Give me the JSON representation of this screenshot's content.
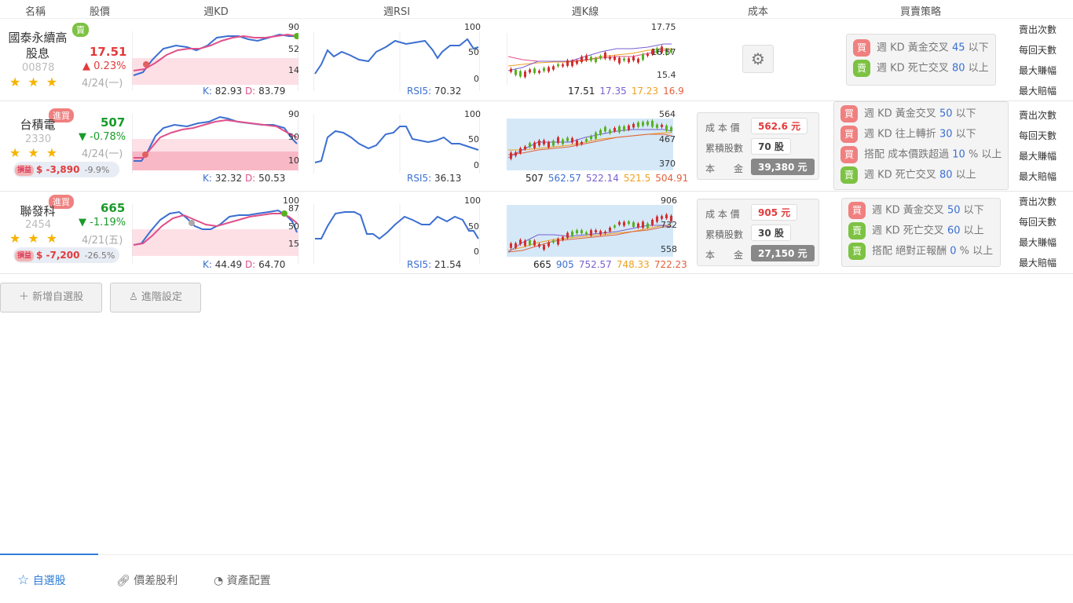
{
  "header": {
    "name": "名稱",
    "price": "股價",
    "kd": "週KD",
    "rsi": "週RSI",
    "kline": "週K線",
    "cost": "成本",
    "strategy": "買賣策略"
  },
  "stat_labels": [
    "賣出次數",
    "每回天數",
    "最大賺幅",
    "最大賠幅"
  ],
  "stocks": [
    {
      "name_line1": "國泰永續高",
      "name_line2": "股息",
      "code": "00878",
      "price": "17.51",
      "change": "0.23%",
      "change_dir": "up",
      "date": "4/24(一)",
      "tag": "賣",
      "tag_type": "sell",
      "kd_ticks": [
        "90",
        "52",
        "14"
      ],
      "kd_k": "82.93",
      "kd_d": "83.79",
      "k_label": "K:",
      "d_label": "D:",
      "rsi_ticks": [
        "100",
        "50",
        "0"
      ],
      "rsi_label": "RSI5:",
      "rsi_value": "70.32",
      "k_ticks": [
        "17.75",
        "16.57",
        "15.4"
      ],
      "k_vals": [
        "17.51",
        "17.35",
        "17.23",
        "16.9"
      ]
    },
    {
      "name_line1": "台積電",
      "code": "2330",
      "price": "507",
      "change": "-0.78%",
      "change_dir": "down",
      "date": "4/24(一)",
      "tag": "進買",
      "tag_type": "buy",
      "pl_icon": "損益",
      "pl_value": "$ -3,890",
      "pl_pct": "-9.9%",
      "kd_ticks": [
        "90",
        "50",
        "10"
      ],
      "kd_k": "32.32",
      "kd_d": "50.53",
      "k_label": "K:",
      "d_label": "D:",
      "rsi_ticks": [
        "100",
        "50",
        "0"
      ],
      "rsi_label": "RSI5:",
      "rsi_value": "36.13",
      "k_ticks": [
        "564",
        "467",
        "370"
      ],
      "k_vals": [
        "507",
        "562.57",
        "522.14",
        "521.5",
        "504.91"
      ],
      "cost": {
        "avg_label": "成 本 價",
        "avg": "562.6 元",
        "shares_label": "累積股數",
        "shares": "70 股",
        "capital_label": "本　　金",
        "capital": "39,380 元"
      }
    },
    {
      "name_line1": "聯發科",
      "code": "2454",
      "price": "665",
      "change": "-1.19%",
      "change_dir": "down",
      "date": "4/21(五)",
      "tag": "進買",
      "tag_type": "buy",
      "pl_icon": "損益",
      "pl_value": "$ -7,200",
      "pl_pct": "-26.5%",
      "kd_ticks": [
        "100",
        "87",
        "50",
        "15"
      ],
      "kd_k": "44.49",
      "kd_d": "64.70",
      "k_label": "K:",
      "d_label": "D:",
      "rsi_ticks": [
        "100",
        "50",
        "0"
      ],
      "rsi_label": "RSI5:",
      "rsi_value": "21.54",
      "k_ticks": [
        "906",
        "732",
        "558"
      ],
      "k_vals": [
        "665",
        "905",
        "752.57",
        "748.33",
        "722.23"
      ],
      "cost": {
        "avg_label": "成 本 價",
        "avg": "905 元",
        "shares_label": "累積股數",
        "shares": "30 股",
        "capital_label": "本　　金",
        "capital": "27,150 元"
      }
    }
  ],
  "strategies": [
    [
      {
        "type": "買",
        "pre": "週 KD 黃金交叉 ",
        "num": "45",
        "post": " 以下"
      },
      {
        "type": "賣",
        "pre": "週 KD 死亡交叉 ",
        "num": "80",
        "post": " 以上"
      }
    ],
    [
      {
        "type": "買",
        "pre": "週 KD 黃金交叉 ",
        "num": "50",
        "post": " 以下"
      },
      {
        "type": "買",
        "pre": "週 KD 往上轉折 ",
        "num": "30",
        "post": " 以下"
      },
      {
        "type": "買",
        "pre": "搭配 成本價跌超過 ",
        "num": "10",
        "post": " % 以上"
      },
      {
        "type": "賣",
        "pre": "週 KD 死亡交叉 ",
        "num": "80",
        "post": " 以上"
      }
    ],
    [
      {
        "type": "買",
        "pre": "週 KD 黃金交叉 ",
        "num": "50",
        "post": " 以下"
      },
      {
        "type": "賣",
        "pre": "週 KD 死亡交叉 ",
        "num": "60",
        "post": " 以上"
      },
      {
        "type": "賣",
        "pre": "搭配 絕對正報酬 ",
        "num": "0",
        "post": " % 以上"
      }
    ]
  ],
  "buttons": {
    "add": "新增自選股",
    "advanced": "進階設定"
  },
  "tabs": [
    "自選股",
    "價差股利",
    "資產配置"
  ],
  "colors": {
    "up": "#e23b3b",
    "down": "#1a9b2a",
    "k_line": "#3b6fd1",
    "d_line": "#e0508a",
    "buy": "#f08080",
    "sell": "#7dc243"
  }
}
